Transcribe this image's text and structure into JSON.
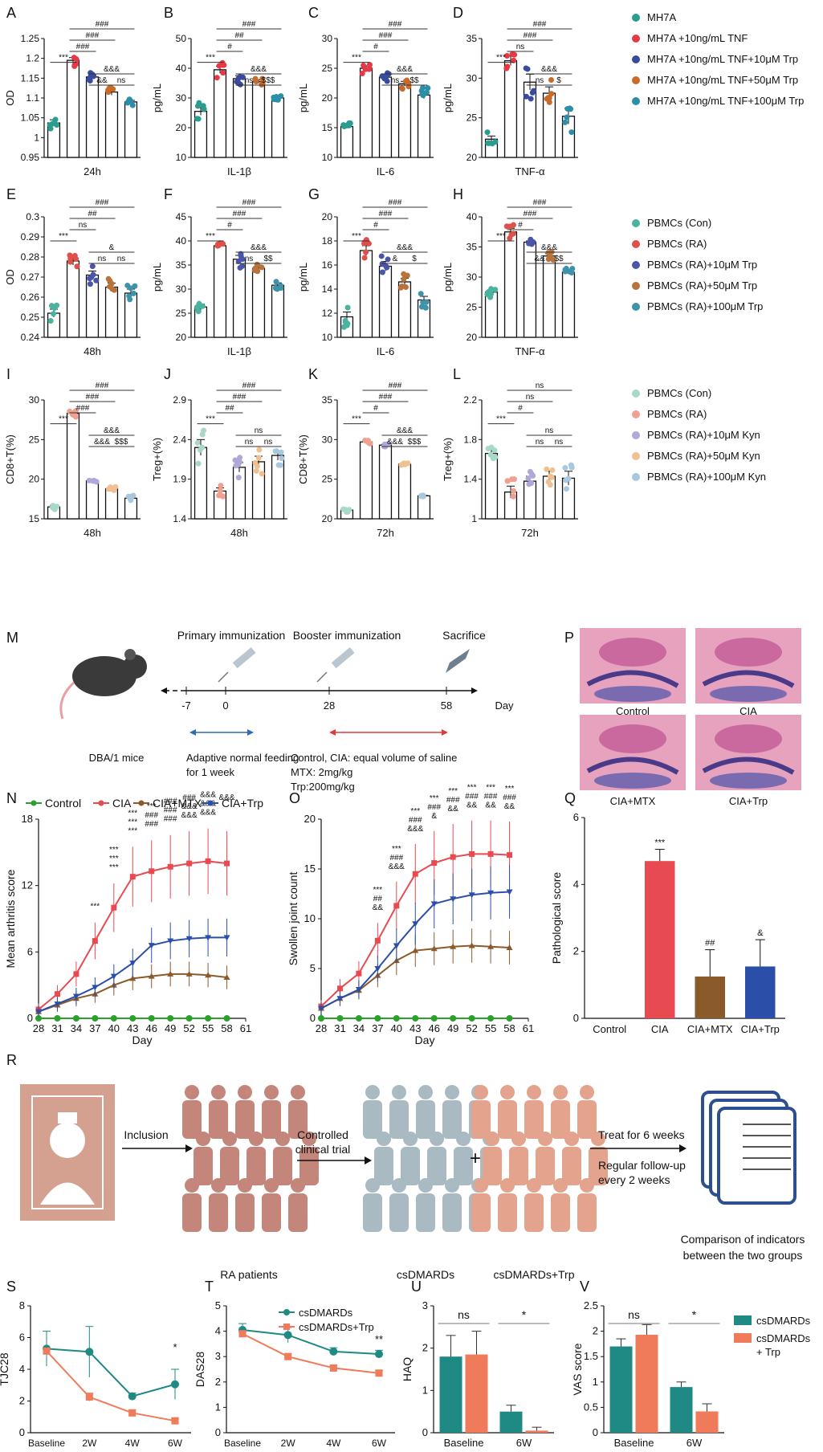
{
  "chart_data": [
    {
      "id": "A",
      "type": "bar",
      "panel": "A",
      "ylabel": "OD",
      "xlabel": "24h",
      "ylim": [
        0.95,
        1.25
      ],
      "yticks": [
        0.95,
        1.0,
        1.05,
        1.1,
        1.15,
        1.2,
        1.25
      ],
      "values": [
        1.037,
        1.195,
        1.153,
        1.115,
        1.09
      ],
      "errors": [
        0.008,
        0.007,
        0.005,
        0.008,
        0.004
      ],
      "signif": [
        "***",
        "###",
        "###",
        "###",
        "&&&",
        "&&",
        "ns"
      ]
    },
    {
      "id": "B",
      "type": "bar",
      "panel": "B",
      "ylabel": "pg/mL",
      "xlabel": "IL-1β",
      "ylim": [
        10,
        50
      ],
      "yticks": [
        10,
        20,
        30,
        40,
        50
      ],
      "values": [
        25.5,
        39.5,
        36.5,
        35.5,
        30
      ],
      "errors": [
        1.3,
        1.2,
        1.0,
        0.6,
        0.4
      ],
      "signif": [
        "***",
        "###",
        "##",
        "#",
        "&&&",
        "ns",
        "$$$"
      ]
    },
    {
      "id": "C",
      "type": "bar",
      "panel": "C",
      "ylabel": "pg/mL",
      "xlabel": "IL-6",
      "ylim": [
        10,
        30
      ],
      "yticks": [
        10,
        15,
        20,
        25,
        30
      ],
      "values": [
        15.2,
        25,
        23.5,
        22.4,
        20.5
      ],
      "errors": [
        0.3,
        0.4,
        0.5,
        0.4,
        0.6
      ],
      "signif": [
        "***",
        "###",
        "###",
        "#",
        "&&&",
        "ns",
        "$$"
      ]
    },
    {
      "id": "D",
      "type": "bar",
      "panel": "D",
      "ylabel": "pg/mL",
      "xlabel": "TNF-α",
      "ylim": [
        20,
        35
      ],
      "yticks": [
        20,
        25,
        30,
        35
      ],
      "values": [
        22.3,
        32.2,
        29.5,
        28.1,
        25.2
      ],
      "errors": [
        0.4,
        0.6,
        1.0,
        0.8,
        1.0
      ],
      "signif": [
        "***",
        "###",
        "###",
        "ns",
        "&&&",
        "ns",
        "$"
      ]
    },
    {
      "id": "E",
      "type": "bar",
      "panel": "E",
      "ylabel": "OD",
      "xlabel": "48h",
      "ylim": [
        0.24,
        0.3
      ],
      "yticks": [
        0.24,
        0.25,
        0.26,
        0.27,
        0.28,
        0.29,
        0.3
      ],
      "values": [
        0.252,
        0.278,
        0.271,
        0.265,
        0.262
      ],
      "errors": [
        0.002,
        0.002,
        0.002,
        0.002,
        0.002
      ],
      "signif": [
        "***",
        "###",
        "##",
        "ns",
        "&",
        "ns",
        "ns"
      ]
    },
    {
      "id": "F",
      "type": "bar",
      "panel": "F",
      "ylabel": "pg/mL",
      "xlabel": "IL-1β",
      "ylim": [
        20,
        45
      ],
      "yticks": [
        20,
        25,
        30,
        35,
        40,
        45
      ],
      "values": [
        26.3,
        39,
        36.2,
        34.3,
        30.8
      ],
      "errors": [
        0.6,
        0.4,
        0.8,
        0.7,
        0.5
      ],
      "signif": [
        "***",
        "###",
        "###",
        "#",
        "&&&",
        "ns",
        "$$"
      ]
    },
    {
      "id": "G",
      "type": "bar",
      "panel": "G",
      "ylabel": "pg/mL",
      "xlabel": "IL-6",
      "ylim": [
        10,
        20
      ],
      "yticks": [
        10,
        12,
        14,
        16,
        18,
        20
      ],
      "values": [
        11.7,
        17.2,
        15.9,
        14.6,
        13.1
      ],
      "errors": [
        0.4,
        0.4,
        0.4,
        0.3,
        0.3
      ],
      "signif": [
        "***",
        "###",
        "###",
        "#",
        "&&&",
        "&",
        "$"
      ]
    },
    {
      "id": "H",
      "type": "bar",
      "panel": "H",
      "ylabel": "pg/mL",
      "xlabel": "TNF-α",
      "ylim": [
        20,
        40
      ],
      "yticks": [
        20,
        25,
        30,
        35,
        40
      ],
      "values": [
        27.5,
        37.5,
        35.8,
        33.5,
        30.8
      ],
      "errors": [
        0.4,
        0.6,
        0.2,
        0.4,
        0.3
      ],
      "signif": [
        "***",
        "###",
        "###",
        "#",
        "&&&",
        "&&",
        "$$"
      ]
    },
    {
      "id": "I",
      "type": "bar",
      "panel": "I",
      "ylabel": "CD8+T(%)",
      "xlabel": "48h",
      "ylim": [
        15,
        30
      ],
      "yticks": [
        15,
        20,
        25,
        30
      ],
      "values": [
        16.5,
        28.3,
        19.8,
        18.8,
        17.6
      ],
      "errors": [
        0.15,
        0.2,
        0.1,
        0.1,
        0.15
      ],
      "signif": [
        "***",
        "###",
        "###",
        "###",
        "&&&",
        "&&&",
        "$$$"
      ]
    },
    {
      "id": "J",
      "type": "bar",
      "panel": "J",
      "ylabel": "Treg+(%)",
      "xlabel": "48h",
      "ylim": [
        1.4,
        2.9
      ],
      "yticks": [
        1.4,
        1.9,
        2.4,
        2.9
      ],
      "values": [
        2.3,
        1.75,
        2.05,
        2.12,
        2.2
      ],
      "errors": [
        0.1,
        0.04,
        0.06,
        0.07,
        0.06
      ],
      "signif": [
        "***",
        "###",
        "###",
        "##",
        "ns",
        "ns",
        "ns"
      ]
    },
    {
      "id": "K",
      "type": "bar",
      "panel": "K",
      "ylabel": "CD8+T(%)",
      "xlabel": "72h",
      "ylim": [
        20,
        35
      ],
      "yticks": [
        20,
        25,
        30,
        35
      ],
      "values": [
        21.1,
        29.7,
        29.3,
        26.9,
        22.9
      ],
      "errors": [
        0.15,
        0.1,
        0.1,
        0.05,
        0.05
      ],
      "signif": [
        "***",
        "###",
        "###",
        "#",
        "&&&",
        "&&&",
        "$$$"
      ]
    },
    {
      "id": "L",
      "type": "bar",
      "panel": "L",
      "ylabel": "Treg+(%)",
      "xlabel": "72h",
      "ylim": [
        1.0,
        2.2
      ],
      "yticks": [
        1.0,
        1.4,
        1.8,
        2.2
      ],
      "values": [
        1.66,
        1.27,
        1.38,
        1.43,
        1.41
      ],
      "errors": [
        0.04,
        0.06,
        0.05,
        0.05,
        0.07
      ],
      "signif": [
        "***",
        "ns",
        "ns",
        "#",
        "ns",
        "ns",
        "ns"
      ]
    },
    {
      "id": "N",
      "type": "line",
      "panel": "N",
      "ylabel": "Mean arthritis score",
      "xlabel": "Day",
      "xlim": [
        28,
        61
      ],
      "ylim": [
        0,
        18
      ],
      "xticks": [
        28,
        31,
        34,
        37,
        40,
        43,
        46,
        49,
        52,
        55,
        58,
        61
      ],
      "yticks": [
        0,
        6,
        12,
        18
      ],
      "x": [
        28,
        31,
        34,
        37,
        40,
        43,
        46,
        49,
        52,
        55,
        58
      ],
      "legend": [
        "Control",
        "CIA",
        "CIA+MTX",
        "CIA+Trp"
      ],
      "series": [
        {
          "name": "Control",
          "values": [
            0,
            0,
            0,
            0,
            0,
            0,
            0,
            0,
            0,
            0,
            0
          ]
        },
        {
          "name": "CIA",
          "values": [
            0.8,
            2.2,
            4,
            7,
            10,
            12.8,
            13.3,
            13.7,
            14,
            14.2,
            14
          ]
        },
        {
          "name": "CIA+MTX",
          "values": [
            0.6,
            1.2,
            1.8,
            2.2,
            3,
            3.6,
            3.8,
            4,
            4,
            3.9,
            3.7
          ]
        },
        {
          "name": "CIA+Trp",
          "values": [
            0.6,
            1.3,
            2,
            2.8,
            3.8,
            5,
            6.6,
            7,
            7.2,
            7.3,
            7.3
          ]
        }
      ],
      "annotations": [
        "***",
        "***",
        "***",
        "***",
        "***",
        "***",
        "***",
        "***",
        "###",
        "###",
        "###",
        "###",
        "###",
        "###",
        "&&&",
        "&&&",
        "&&&",
        "&&&",
        "&&&",
        "&&&"
      ]
    },
    {
      "id": "O",
      "type": "line",
      "panel": "O",
      "ylabel": "Swollen joint count",
      "xlabel": "Day",
      "xlim": [
        28,
        61
      ],
      "ylim": [
        0,
        20
      ],
      "xticks": [
        28,
        31,
        34,
        37,
        40,
        43,
        46,
        49,
        52,
        55,
        58,
        61
      ],
      "yticks": [
        0,
        5,
        10,
        15,
        20
      ],
      "x": [
        28,
        31,
        34,
        37,
        40,
        43,
        46,
        49,
        52,
        55,
        58
      ],
      "legend": [],
      "series": [
        {
          "name": "Control",
          "values": [
            0,
            0,
            0,
            0,
            0,
            0,
            0,
            0,
            0,
            0,
            0
          ]
        },
        {
          "name": "CIA",
          "values": [
            1.2,
            3,
            4.5,
            7.8,
            11.3,
            14.5,
            15.6,
            16.2,
            16.5,
            16.5,
            16.4
          ]
        },
        {
          "name": "CIA+MTX",
          "values": [
            1,
            2,
            2.8,
            4.3,
            5.8,
            6.8,
            7,
            7.2,
            7.3,
            7.2,
            7.1
          ]
        },
        {
          "name": "CIA+Trp",
          "values": [
            1,
            2,
            2.9,
            5,
            7.3,
            9.5,
            11.5,
            12,
            12.4,
            12.6,
            12.7
          ]
        }
      ],
      "annotations": [
        "***",
        "##",
        "&&",
        "***",
        "###",
        "&&&",
        "***",
        "###",
        "&&&",
        "***",
        "###",
        "&",
        "***",
        "###",
        "&&",
        "***",
        "###",
        "&&",
        "***",
        "###",
        "&&",
        "***",
        "###",
        "&&"
      ]
    },
    {
      "id": "Q",
      "type": "bar",
      "panel": "Q",
      "ylabel": "Pathological score",
      "xlabel": "",
      "ylim": [
        0,
        6
      ],
      "yticks": [
        0,
        2,
        4,
        6
      ],
      "categories": [
        "Control",
        "CIA",
        "CIA+MTX",
        "CIA+Trp"
      ],
      "values": [
        0,
        4.7,
        1.25,
        1.55
      ],
      "errors": [
        0,
        0.35,
        0.8,
        0.8
      ],
      "colors": [
        "#cccccc",
        "#e84a52",
        "#8b5a2b",
        "#2b4fa8"
      ],
      "signif": [
        "",
        "***",
        "##",
        "&"
      ]
    },
    {
      "id": "S",
      "type": "line",
      "panel": "S",
      "ylabel": "TJC28",
      "xlabel": "",
      "ylim": [
        0,
        8
      ],
      "yticks": [
        0,
        2,
        4,
        6,
        8
      ],
      "categories": [
        "Baseline",
        "2W",
        "4W",
        "6W"
      ],
      "series": [
        {
          "name": "csDMARDs",
          "values": [
            5.3,
            5.1,
            2.3,
            3.05
          ]
        },
        {
          "name": "csDMARDs+Trp",
          "values": [
            5.15,
            2.25,
            1.25,
            0.75
          ]
        }
      ],
      "signif": [
        "*"
      ]
    },
    {
      "id": "T",
      "type": "line",
      "panel": "T",
      "ylabel": "DAS28",
      "xlabel": "",
      "ylim": [
        0,
        5
      ],
      "yticks": [
        0,
        1,
        2,
        3,
        4,
        5
      ],
      "categories": [
        "Baseline",
        "2W",
        "4W",
        "6W"
      ],
      "legend": [
        "csDMARDs",
        "csDMARDs+Trp"
      ],
      "series": [
        {
          "name": "csDMARDs",
          "values": [
            4.05,
            3.85,
            3.2,
            3.1
          ]
        },
        {
          "name": "csDMARDs+Trp",
          "values": [
            3.9,
            3.0,
            2.55,
            2.35
          ]
        }
      ],
      "signif": [
        "**"
      ]
    },
    {
      "id": "U",
      "type": "bar",
      "panel": "U",
      "ylabel": "HAQ",
      "xlabel": "",
      "ylim": [
        0,
        3
      ],
      "yticks": [
        0,
        1,
        2,
        3
      ],
      "categories": [
        "Baseline",
        "6W"
      ],
      "series": [
        {
          "name": "csDMARDs",
          "values": [
            1.8,
            0.5
          ]
        },
        {
          "name": "csDMARDs+Trp",
          "values": [
            1.85,
            0.05
          ]
        }
      ],
      "signif": [
        "ns",
        "*"
      ]
    },
    {
      "id": "V",
      "type": "bar",
      "panel": "V",
      "ylabel": "VAS score",
      "xlabel": "",
      "ylim": [
        0,
        2.5
      ],
      "yticks": [
        0,
        0.5,
        1.0,
        1.5,
        2.0,
        2.5
      ],
      "categories": [
        "Baseline",
        "6W"
      ],
      "legend": [
        "csDMARDs",
        "csDMARDs + Trp"
      ],
      "series": [
        {
          "name": "csDMARDs",
          "values": [
            1.7,
            0.9
          ]
        },
        {
          "name": "csDMARDs+Trp",
          "values": [
            1.93,
            0.42
          ]
        }
      ],
      "signif": [
        "ns",
        "*"
      ]
    }
  ],
  "legends": {
    "mh7a": [
      "MH7A",
      "MH7A +10ng/mL TNF",
      "MH7A +10ng/mL TNF+10μM Trp",
      "MH7A +10ng/mL TNF+50μM Trp",
      "MH7A +10ng/mL TNF+100μM Trp"
    ],
    "pbmc_trp": [
      "PBMCs (Con)",
      "PBMCs (RA)",
      "PBMCs (RA)+10μM Trp",
      "PBMCs (RA)+50μM Trp",
      "PBMCs (RA)+100μM Trp"
    ],
    "pbmc_kyn": [
      "PBMCs (Con)",
      "PBMCs (RA)",
      "PBMCs (RA)+10μM Kyn",
      "PBMCs (RA)+50μM Kyn",
      "PBMCs (RA)+100μM Kyn"
    ]
  },
  "colors": {
    "mh7a": [
      "#2a9d8f",
      "#e63946",
      "#3a4a9e",
      "#c86b2a",
      "#2b8fa8"
    ],
    "pbmc_trp": [
      "#49b3a0",
      "#e0504a",
      "#4b55a8",
      "#b8733a",
      "#3f93a8"
    ],
    "pbmc_kyn": [
      "#a8d8c8",
      "#f0a090",
      "#b0a8d8",
      "#f0c090",
      "#a8c8e0"
    ],
    "cia": [
      "#2ca02c",
      "#e84a52",
      "#8b5a2b",
      "#2b4fa8"
    ],
    "clinical": [
      "#1f8a84",
      "#ef7b5a"
    ]
  },
  "panel_letters": [
    "A",
    "B",
    "C",
    "D",
    "E",
    "F",
    "G",
    "H",
    "I",
    "J",
    "K",
    "L",
    "M",
    "N",
    "O",
    "P",
    "Q",
    "R",
    "S",
    "T",
    "U",
    "V"
  ],
  "timeline": {
    "events": [
      "Primary immunization",
      "Booster immunization",
      "Sacrifice"
    ],
    "ticks": [
      "-7",
      "0",
      "28",
      "58"
    ],
    "axis_label": "Day",
    "mouse_label": "DBA/1 mice",
    "adapt_label": "Adaptive normal feeding for 1 week",
    "treatment_lines": [
      "Control, CIA: equal volume of saline",
      "MTX: 2mg/kg",
      "Trp:200mg/kg"
    ]
  },
  "histology": {
    "labels": [
      "Control",
      "CIA",
      "CIA+MTX",
      "CIA+Trp"
    ]
  },
  "trial": {
    "inclusion": "Inclusion",
    "controlled": "Controlled clinical trial",
    "patients": "RA patients",
    "group1": "csDMARDs",
    "group2": "csDMARDs+Trp",
    "plus": "+",
    "treat": "Treat for 6 weeks",
    "followup": "Regular follow-up every 2 weeks",
    "compare": "Comparison of indicators between the two groups"
  }
}
